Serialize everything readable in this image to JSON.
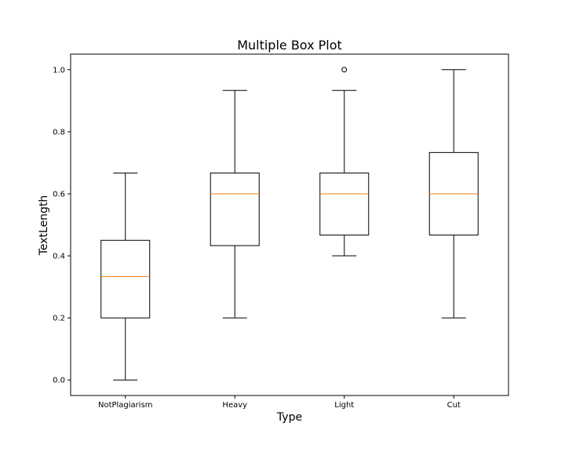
{
  "chart_data": {
    "type": "box",
    "title": "Multiple Box Plot",
    "xlabel": "Type",
    "ylabel": "TextLength",
    "categories": [
      "NotPlagiarism",
      "Heavy",
      "Light",
      "Cut"
    ],
    "boxes": [
      {
        "category": "NotPlagiarism",
        "whisker_low": 0.0,
        "q1": 0.2,
        "median": 0.333,
        "q3": 0.45,
        "whisker_high": 0.667,
        "outliers": []
      },
      {
        "category": "Heavy",
        "whisker_low": 0.2,
        "q1": 0.433,
        "median": 0.6,
        "q3": 0.667,
        "whisker_high": 0.933,
        "outliers": []
      },
      {
        "category": "Light",
        "whisker_low": 0.4,
        "q1": 0.467,
        "median": 0.6,
        "q3": 0.667,
        "whisker_high": 0.933,
        "outliers": [
          1.0
        ]
      },
      {
        "category": "Cut",
        "whisker_low": 0.2,
        "q1": 0.467,
        "median": 0.6,
        "q3": 0.733,
        "whisker_high": 1.0,
        "outliers": []
      }
    ],
    "yticks": [
      "0.0",
      "0.2",
      "0.4",
      "0.6",
      "0.8",
      "1.0"
    ],
    "ylim": [
      -0.05,
      1.05
    ],
    "grid": false,
    "colors": {
      "box": "#000000",
      "median": "#ff7f0e",
      "background": "#ffffff"
    }
  }
}
